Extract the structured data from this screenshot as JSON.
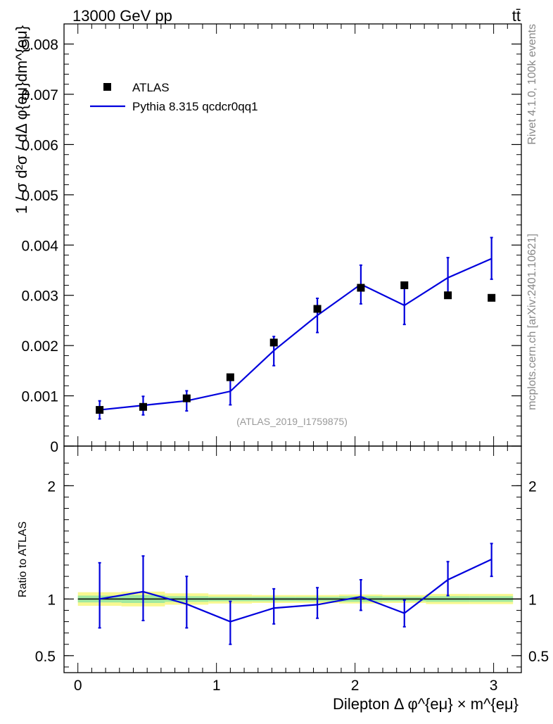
{
  "header": {
    "energy_label": "13000 GeV pp",
    "process_label": "tt̄",
    "side_label_rivet": "Rivet 4.1.0,  100k events",
    "side_label_source": "mcplots.cern.ch [arXiv:2401.10621]",
    "watermark": "(ATLAS_2019_I1759875)"
  },
  "colors": {
    "data": "#000000",
    "mc": "#0000dd",
    "band_inner": "#a0e8a0",
    "band_outer": "#f8f890",
    "ref_line": "#006400"
  },
  "chart_data": [
    {
      "type": "line",
      "panel": "main",
      "ylabel": "1 / σ  d²σ / dΔ φ{eμ}dm^{eμ}",
      "xlim": [
        -0.1,
        3.2
      ],
      "ylim": [
        0,
        0.0084
      ],
      "ytick_labels": [
        "0",
        "0.001",
        "0.002",
        "0.003",
        "0.004",
        "0.005",
        "0.006",
        "0.007",
        "0.008"
      ],
      "ytick_values": [
        0,
        0.001,
        0.002,
        0.003,
        0.004,
        0.005,
        0.006,
        0.007,
        0.008
      ],
      "legend": [
        {
          "label": "ATLAS",
          "kind": "marker"
        },
        {
          "label": "Pythia 8.315 qcdcr0qq1",
          "kind": "line"
        }
      ],
      "x": [
        0.157,
        0.471,
        0.785,
        1.1,
        1.414,
        1.728,
        2.042,
        2.356,
        2.67,
        2.985
      ],
      "series": [
        {
          "name": "ATLAS",
          "values": [
            0.00072,
            0.00078,
            0.00095,
            0.00137,
            0.00206,
            0.00273,
            0.00315,
            0.0032,
            0.003,
            0.00295
          ]
        },
        {
          "name": "Pythia 8.315 qcdcr0qq1",
          "values": [
            0.00072,
            0.00081,
            0.0009,
            0.00109,
            0.0019,
            0.0026,
            0.00322,
            0.0028,
            0.00335,
            0.00373
          ],
          "err_low": [
            0.00054,
            0.00062,
            0.0007,
            0.00082,
            0.0016,
            0.00226,
            0.00283,
            0.00242,
            0.00295,
            0.00332
          ],
          "err_high": [
            0.0009,
            0.00099,
            0.0011,
            0.00135,
            0.00218,
            0.00294,
            0.0036,
            0.00318,
            0.00375,
            0.00415
          ]
        }
      ]
    },
    {
      "type": "line",
      "panel": "ratio",
      "ylabel": "Ratio to ATLAS",
      "xlabel": "Dilepton Δ φ^{eμ} × m^{eμ}",
      "xlim": [
        -0.1,
        3.2
      ],
      "ylim": [
        0.35,
        2.35
      ],
      "xtick_labels": [
        "0",
        "1",
        "2",
        "3"
      ],
      "xtick_values": [
        0,
        1,
        2,
        3
      ],
      "ytick_labels": [
        "0.5",
        "1",
        "2"
      ],
      "ytick_values": [
        0.5,
        1,
        2
      ],
      "x": [
        0.157,
        0.471,
        0.785,
        1.1,
        1.414,
        1.728,
        2.042,
        2.356,
        2.67,
        2.985
      ],
      "series": [
        {
          "name": "Pythia 8.315 qcdcr0qq1 / ATLAS",
          "values": [
            1.0,
            1.065,
            0.955,
            0.8,
            0.92,
            0.95,
            1.02,
            0.875,
            1.17,
            1.35
          ],
          "err_low": [
            0.745,
            0.81,
            0.745,
            0.6,
            0.78,
            0.83,
            0.9,
            0.755,
            1.03,
            1.2
          ],
          "err_high": [
            1.32,
            1.38,
            1.2,
            0.98,
            1.09,
            1.1,
            1.17,
            0.99,
            1.33,
            1.49
          ]
        }
      ],
      "band_edges": [
        0,
        0.314,
        0.628,
        0.942,
        1.256,
        1.57,
        1.884,
        2.198,
        2.512,
        2.826,
        3.14
      ],
      "band_inner": [
        [
          0.97,
          1.03
        ],
        [
          0.965,
          1.035
        ],
        [
          0.975,
          1.025
        ],
        [
          0.98,
          1.02
        ],
        [
          0.98,
          1.02
        ],
        [
          0.98,
          1.02
        ],
        [
          0.975,
          1.025
        ],
        [
          0.98,
          1.02
        ],
        [
          0.975,
          1.025
        ],
        [
          0.975,
          1.025
        ]
      ],
      "band_outer": [
        [
          0.94,
          1.06
        ],
        [
          0.935,
          1.065
        ],
        [
          0.95,
          1.05
        ],
        [
          0.96,
          1.04
        ],
        [
          0.965,
          1.035
        ],
        [
          0.965,
          1.035
        ],
        [
          0.96,
          1.04
        ],
        [
          0.965,
          1.035
        ],
        [
          0.955,
          1.045
        ],
        [
          0.955,
          1.045
        ]
      ]
    }
  ]
}
